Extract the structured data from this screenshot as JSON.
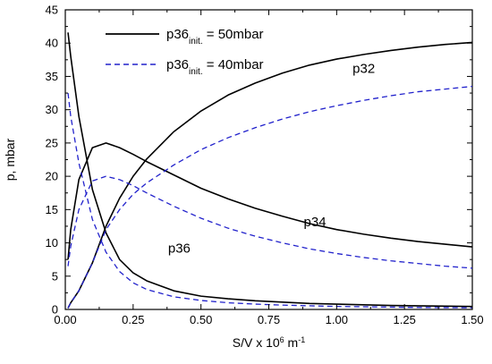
{
  "chart_data": {
    "type": "line",
    "xlabel_main": "S/V x 10",
    "xlabel_sup": "6",
    "xlabel_unit": " m",
    "xlabel_unit_sup": "-1",
    "ylabel": "p, mbar",
    "xlim": [
      0,
      1.5
    ],
    "ylim": [
      0,
      45
    ],
    "x_ticks": [
      "0.00",
      "0.25",
      "0.50",
      "0.75",
      "1.00",
      "1.25",
      "1.50"
    ],
    "y_ticks": [
      "0",
      "5",
      "10",
      "15",
      "20",
      "25",
      "30",
      "35",
      "40",
      "45"
    ],
    "grid": false,
    "legend_position": "top-left",
    "legend": [
      {
        "prefix": "p36",
        "sub": "init.",
        "suffix": " = 50mbar",
        "style": "solid",
        "color": "#000000"
      },
      {
        "prefix": "p36",
        "sub": "init.",
        "suffix": " = 40mbar",
        "style": "dashed",
        "color": "#2222cc"
      }
    ],
    "annotations": [
      {
        "text": "p32",
        "x": 1.1,
        "y": 35.5
      },
      {
        "text": "p34",
        "x": 0.92,
        "y": 12.5
      },
      {
        "text": "p36",
        "x": 0.42,
        "y": 8.5
      }
    ],
    "series": [
      {
        "group": "p36init = 50mbar",
        "curve": "p36",
        "color": "#000000",
        "dash": false,
        "x": [
          0.01,
          0.02,
          0.05,
          0.1,
          0.15,
          0.2,
          0.25,
          0.3,
          0.4,
          0.5,
          0.6,
          0.7,
          0.8,
          0.9,
          1.0,
          1.1,
          1.2,
          1.3,
          1.4,
          1.5
        ],
        "y": [
          41.6,
          38.0,
          29.0,
          18.0,
          11.5,
          7.5,
          5.5,
          4.3,
          2.8,
          2.0,
          1.6,
          1.3,
          1.1,
          0.9,
          0.8,
          0.7,
          0.6,
          0.55,
          0.5,
          0.45
        ]
      },
      {
        "group": "p36init = 50mbar",
        "curve": "p34",
        "color": "#000000",
        "dash": false,
        "x": [
          0.01,
          0.02,
          0.05,
          0.1,
          0.15,
          0.2,
          0.25,
          0.3,
          0.4,
          0.5,
          0.6,
          0.7,
          0.8,
          0.9,
          1.0,
          1.1,
          1.2,
          1.3,
          1.4,
          1.5
        ],
        "y": [
          7.5,
          12.0,
          19.5,
          24.3,
          25.0,
          24.3,
          23.3,
          22.2,
          20.2,
          18.2,
          16.6,
          15.2,
          14.0,
          12.9,
          12.0,
          11.3,
          10.7,
          10.2,
          9.8,
          9.4
        ]
      },
      {
        "group": "p36init = 50mbar",
        "curve": "p32",
        "color": "#000000",
        "dash": false,
        "x": [
          0.01,
          0.02,
          0.05,
          0.1,
          0.15,
          0.2,
          0.25,
          0.3,
          0.4,
          0.5,
          0.6,
          0.7,
          0.8,
          0.9,
          1.0,
          1.1,
          1.2,
          1.3,
          1.4,
          1.5
        ],
        "y": [
          0.2,
          1.0,
          2.8,
          7.0,
          12.5,
          16.7,
          20.0,
          22.6,
          26.7,
          29.8,
          32.2,
          34.0,
          35.5,
          36.7,
          37.6,
          38.3,
          38.9,
          39.4,
          39.8,
          40.1
        ]
      },
      {
        "group": "p36init = 40mbar",
        "curve": "p36",
        "color": "#2222cc",
        "dash": true,
        "x": [
          0.01,
          0.02,
          0.05,
          0.1,
          0.15,
          0.2,
          0.25,
          0.3,
          0.4,
          0.5,
          0.6,
          0.7,
          0.8,
          0.9,
          1.0,
          1.1,
          1.2,
          1.3,
          1.4,
          1.5
        ],
        "y": [
          32.5,
          29.0,
          22.0,
          13.5,
          8.6,
          5.7,
          4.0,
          3.0,
          1.9,
          1.35,
          1.0,
          0.8,
          0.65,
          0.55,
          0.45,
          0.4,
          0.35,
          0.3,
          0.28,
          0.25
        ]
      },
      {
        "group": "p36init = 40mbar",
        "curve": "p34",
        "color": "#2222cc",
        "dash": true,
        "x": [
          0.01,
          0.02,
          0.05,
          0.1,
          0.15,
          0.2,
          0.25,
          0.3,
          0.4,
          0.5,
          0.6,
          0.7,
          0.8,
          0.9,
          1.0,
          1.1,
          1.2,
          1.3,
          1.4,
          1.5
        ],
        "y": [
          6.5,
          9.5,
          15.0,
          19.3,
          20.0,
          19.5,
          18.6,
          17.5,
          15.5,
          13.7,
          12.2,
          11.0,
          10.0,
          9.1,
          8.4,
          7.8,
          7.3,
          6.9,
          6.5,
          6.2
        ]
      },
      {
        "group": "p36init = 40mbar",
        "curve": "p32",
        "color": "#2222cc",
        "dash": true,
        "x": [
          0.01,
          0.02,
          0.05,
          0.1,
          0.15,
          0.2,
          0.25,
          0.3,
          0.4,
          0.5,
          0.6,
          0.7,
          0.8,
          0.9,
          1.0,
          1.1,
          1.2,
          1.3,
          1.4,
          1.5
        ],
        "y": [
          0.2,
          1.0,
          2.8,
          7.0,
          12.0,
          15.0,
          17.3,
          19.0,
          21.7,
          24.0,
          25.8,
          27.3,
          28.6,
          29.7,
          30.6,
          31.4,
          32.1,
          32.7,
          33.1,
          33.5
        ]
      }
    ]
  }
}
